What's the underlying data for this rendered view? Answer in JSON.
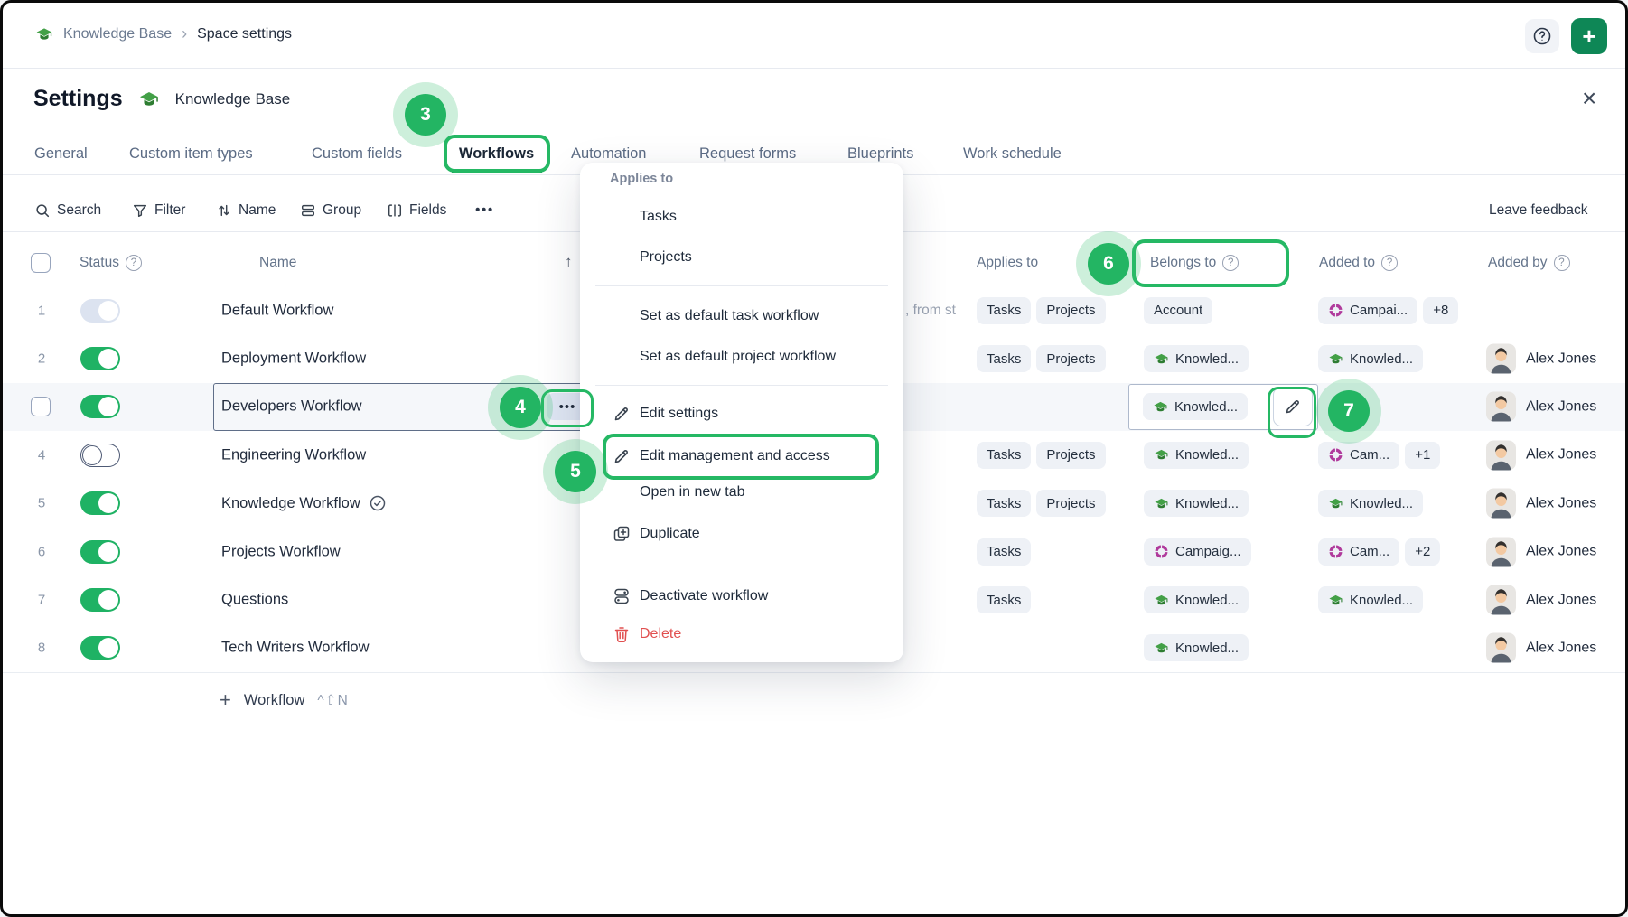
{
  "topbar": {
    "space_label": "Knowledge Base",
    "separator": "›",
    "page_label": "Space settings"
  },
  "panel_header": {
    "title": "Settings",
    "space_name": "Knowledge Base",
    "close_glyph": "×"
  },
  "tabs": [
    {
      "label": "General",
      "active": false
    },
    {
      "label": "Custom item types",
      "active": false
    },
    {
      "label": "Custom fields",
      "active": false
    },
    {
      "label": "Workflows",
      "active": true
    },
    {
      "label": "Automation",
      "active": false
    },
    {
      "label": "Request forms",
      "active": false
    },
    {
      "label": "Blueprints",
      "active": false
    },
    {
      "label": "Work schedule",
      "active": false
    }
  ],
  "toolbar": {
    "items": [
      {
        "icon": "search",
        "label": "Search"
      },
      {
        "icon": "filter",
        "label": "Filter"
      },
      {
        "icon": "sort",
        "label": "Name"
      },
      {
        "icon": "group",
        "label": "Group"
      },
      {
        "icon": "fields",
        "label": "Fields"
      }
    ],
    "more_glyph": "•••",
    "feedback_label": "Leave feedback"
  },
  "table": {
    "headers": {
      "status": "Status",
      "name": "Name",
      "sort_glyph": "↑",
      "applies_to": "Applies to",
      "belongs_to": "Belongs to",
      "added_to": "Added to",
      "added_by": "Added by"
    },
    "rows": [
      {
        "num": "1",
        "toggle": "muted",
        "name": "Default Workflow",
        "desc": ", from st",
        "applies": [
          "Tasks",
          "Projects"
        ],
        "belongs": {
          "icon": null,
          "label": "Account"
        },
        "added_to": {
          "icon": "campaign",
          "label": "Campai...",
          "extra": "+8"
        },
        "added_by": null
      },
      {
        "num": "2",
        "toggle": "on",
        "name": "Deployment Workflow",
        "applies": [
          "Tasks",
          "Projects"
        ],
        "belongs": {
          "icon": "cap",
          "label": "Knowled..."
        },
        "added_to": {
          "icon": "cap",
          "label": "Knowled...",
          "extra": null
        },
        "added_by": {
          "name": "Alex Jones"
        }
      },
      {
        "num": "3",
        "selected": true,
        "toggle": "on",
        "name": "Developers Workflow",
        "applies": [],
        "belongs": {
          "icon": "cap",
          "label": "Knowled..."
        },
        "added_to": null,
        "added_by": {
          "name": "Alex Jones"
        }
      },
      {
        "num": "4",
        "toggle": "off",
        "name": "Engineering Workflow",
        "applies": [
          "Tasks",
          "Projects"
        ],
        "belongs": {
          "icon": "cap",
          "label": "Knowled..."
        },
        "added_to": {
          "icon": "campaign",
          "label": "Cam...",
          "extra": "+1"
        },
        "added_by": {
          "name": "Alex Jones"
        }
      },
      {
        "num": "5",
        "toggle": "on",
        "name": "Knowledge Workflow",
        "name_badge": "check",
        "applies": [
          "Tasks",
          "Projects"
        ],
        "belongs": {
          "icon": "cap",
          "label": "Knowled..."
        },
        "added_to": {
          "icon": "cap",
          "label": "Knowled...",
          "extra": null
        },
        "added_by": {
          "name": "Alex Jones"
        }
      },
      {
        "num": "6",
        "toggle": "on",
        "name": "Projects Workflow",
        "applies": [
          "Tasks"
        ],
        "belongs": {
          "icon": "campaign",
          "label": "Campaig..."
        },
        "added_to": {
          "icon": "campaign",
          "label": "Cam...",
          "extra": "+2"
        },
        "added_by": {
          "name": "Alex Jones"
        }
      },
      {
        "num": "7",
        "toggle": "on",
        "name": "Questions",
        "applies": [
          "Tasks"
        ],
        "belongs": {
          "icon": "cap",
          "label": "Knowled..."
        },
        "added_to": {
          "icon": "cap",
          "label": "Knowled...",
          "extra": null
        },
        "added_by": {
          "name": "Alex Jones"
        }
      },
      {
        "num": "8",
        "toggle": "on",
        "name": "Tech Writers Workflow",
        "applies": [],
        "belongs": {
          "icon": "cap",
          "label": "Knowled..."
        },
        "added_to": null,
        "added_by": {
          "name": "Alex Jones"
        }
      }
    ]
  },
  "add_row": {
    "plus_glyph": "+",
    "label": "Workflow",
    "shortcut": "^⇧N"
  },
  "context_menu": {
    "items": [
      {
        "type": "section",
        "label": "Applies to"
      },
      {
        "type": "item",
        "icon": null,
        "label": "Tasks"
      },
      {
        "type": "item",
        "icon": null,
        "label": "Projects"
      },
      {
        "type": "divider"
      },
      {
        "type": "item",
        "icon": null,
        "label": "Set as default task workflow"
      },
      {
        "type": "item",
        "icon": null,
        "label": "Set as default project workflow"
      },
      {
        "type": "divider"
      },
      {
        "type": "item",
        "icon": "pencil",
        "label": "Edit settings"
      },
      {
        "type": "item",
        "icon": "pencil",
        "label": "Edit management and access",
        "highlight": true
      },
      {
        "type": "item",
        "icon": null,
        "label": "Open in new tab"
      },
      {
        "type": "item",
        "icon": "duplicate",
        "label": "Duplicate"
      },
      {
        "type": "divider"
      },
      {
        "type": "item",
        "icon": "toggle",
        "label": "Deactivate workflow"
      },
      {
        "type": "item",
        "icon": "trash",
        "label": "Delete",
        "danger": true
      }
    ]
  },
  "annotations": {
    "step3": "3",
    "step4": "4",
    "step5": "5",
    "step6": "6",
    "step7": "7"
  },
  "colors": {
    "accent_green": "#23b563",
    "highlight_border": "#25b864",
    "active_tab_underline": "#17804d",
    "toggle_on": "#1fb264",
    "delete_red": "#e14f4f",
    "chip_bg": "#eef1f6",
    "breadcrumb_link": "#6b7a90",
    "campaign_magenta": "#b03a9c",
    "cap_green": "#43a047",
    "add_button_green": "#0e8756"
  }
}
